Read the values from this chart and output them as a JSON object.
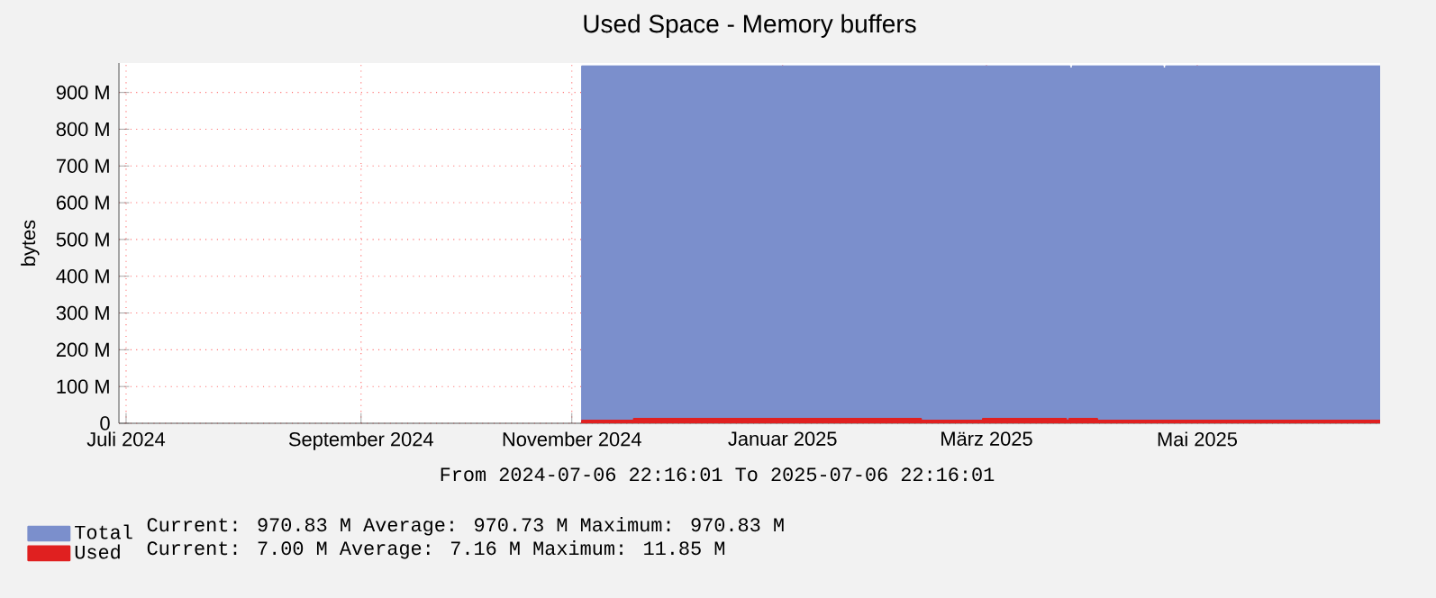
{
  "chart_data": {
    "type": "area",
    "title": "Used Space - Memory buffers",
    "ylabel": "bytes",
    "xlim": [
      "2024-07-06T22:16",
      "2025-07-06T22:16"
    ],
    "xticks": [
      {
        "value": "2024-07-09",
        "label": "Juli 2024"
      },
      {
        "value": "2024-09-15",
        "label": "September 2024"
      },
      {
        "value": "2024-11-15",
        "label": "November 2024"
      },
      {
        "value": "2025-01-15",
        "label": "Januar 2025"
      },
      {
        "value": "2025-03-15",
        "label": "März 2025"
      },
      {
        "value": "2025-05-15",
        "label": "Mai 2025"
      }
    ],
    "ylim": [
      0,
      980
    ],
    "yticks": [
      0,
      {
        "value": 100,
        "label": "100 M"
      },
      {
        "value": 200,
        "label": "200 M"
      },
      {
        "value": 300,
        "label": "300 M"
      },
      {
        "value": 400,
        "label": "400 M"
      },
      {
        "value": 500,
        "label": "500 M"
      },
      {
        "value": 600,
        "label": "600 M"
      },
      {
        "value": 700,
        "label": "700 M"
      },
      {
        "value": 800,
        "label": "800 M"
      },
      {
        "value": 900,
        "label": "900 M"
      }
    ],
    "grid": true,
    "legend": "bottom left",
    "line_style": "solid",
    "series": [
      {
        "name": "Total",
        "color": "#7b8fcc",
        "x": [
          "2024-11-18",
          "2025-04-08",
          "2025-04-09",
          "2025-05-05",
          "2025-05-06",
          "2025-07-06T22:16"
        ],
        "values": [
          971,
          965,
          971,
          965,
          971,
          971
        ]
      },
      {
        "name": "Used",
        "color": "#e02020",
        "x": [
          "2024-11-18",
          "2024-12-03",
          "2025-02-24",
          "2025-03-14",
          "2025-04-07",
          "2025-04-08",
          "2025-04-16",
          "2025-07-06T22:16"
        ],
        "values": [
          7,
          12,
          7,
          12,
          7,
          12,
          7,
          7
        ]
      }
    ],
    "annotations": [
      "From 2024-07-06 22:16:01 To 2025-07-06 22:16:01",
      "Current: 970.83 M Average: 970.73 M Maximum: 970.83 M",
      "Current: 7.00 M Average: 7.16 M Maximum: 11.85 M"
    ]
  }
}
